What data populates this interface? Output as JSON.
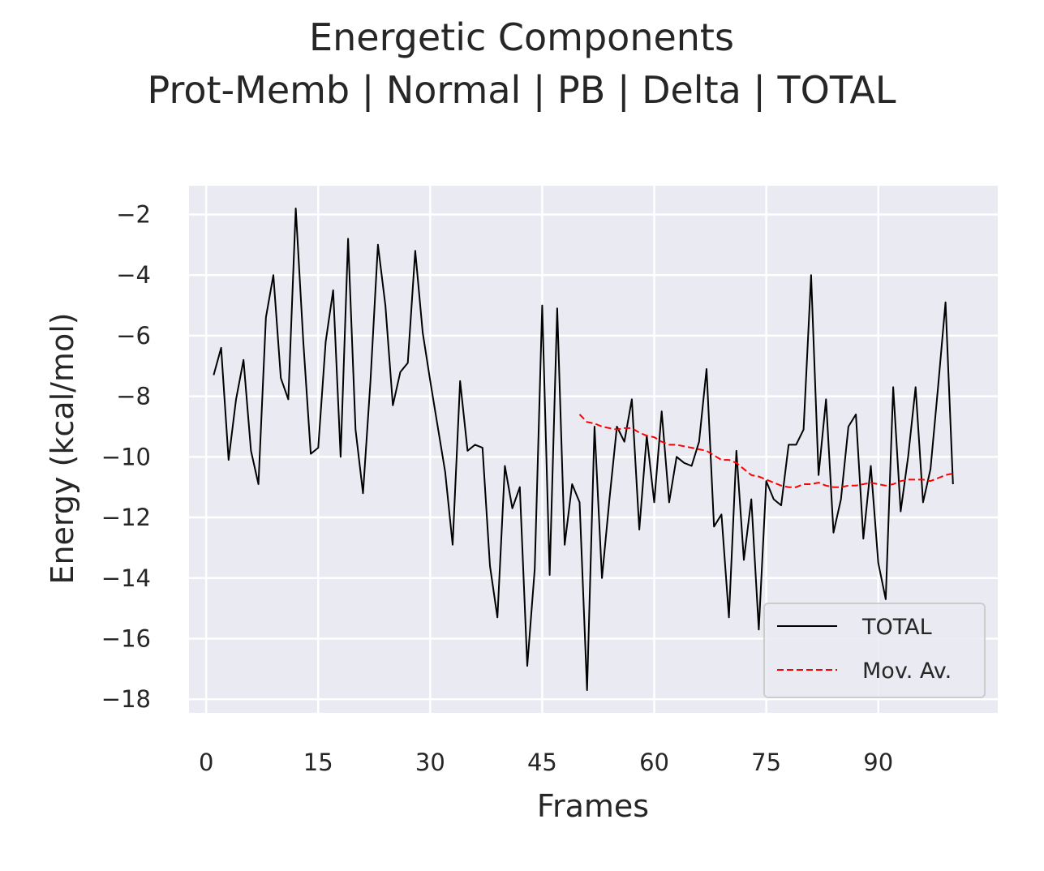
{
  "chart_data": {
    "type": "line",
    "title": "Energetic Components",
    "subtitle": "Prot-Memb | Normal | PB | Delta | TOTAL",
    "xlabel": "Frames",
    "ylabel": "Energy (kcal/mol)",
    "xlim": [
      -2.3,
      106
    ],
    "ylim": [
      -18.45,
      -1.05
    ],
    "xticks": [
      0,
      15,
      30,
      45,
      60,
      75,
      90
    ],
    "xtick_labels": [
      "0",
      "15",
      "30",
      "45",
      "60",
      "75",
      "90"
    ],
    "yticks": [
      -2,
      -4,
      -6,
      -8,
      -10,
      -12,
      -14,
      -16,
      -18
    ],
    "ytick_labels": [
      "−2",
      "−4",
      "−6",
      "−8",
      "−10",
      "−12",
      "−14",
      "−16",
      "−18"
    ],
    "grid": true,
    "legend_position": "lower-right",
    "colors": {
      "total": "#000000",
      "moving_average": "#ff0000",
      "plot_background": "#eaeaf2",
      "grid": "#ffffff"
    },
    "series": [
      {
        "name": "TOTAL",
        "style": "solid",
        "x_start": 1,
        "values": [
          -7.3,
          -6.4,
          -10.1,
          -8.1,
          -6.8,
          -9.8,
          -10.9,
          -5.4,
          -4.0,
          -7.4,
          -8.1,
          -1.8,
          -6.2,
          -9.9,
          -9.7,
          -6.2,
          -4.5,
          -10.0,
          -2.8,
          -9.1,
          -11.2,
          -7.5,
          -3.0,
          -5.0,
          -8.3,
          -7.2,
          -6.9,
          -3.2,
          -5.9,
          -7.5,
          -9.0,
          -10.5,
          -12.9,
          -7.5,
          -9.8,
          -9.6,
          -9.7,
          -13.6,
          -15.3,
          -10.3,
          -11.7,
          -11.0,
          -16.9,
          -13.7,
          -5.0,
          -13.9,
          -5.1,
          -12.9,
          -10.9,
          -11.5,
          -17.7,
          -9.0,
          -14.0,
          -11.4,
          -9.0,
          -9.5,
          -8.1,
          -12.4,
          -9.3,
          -11.5,
          -8.5,
          -11.5,
          -10.0,
          -10.2,
          -10.3,
          -9.5,
          -7.1,
          -12.3,
          -11.9,
          -15.3,
          -9.8,
          -13.4,
          -11.4,
          -15.7,
          -10.8,
          -11.4,
          -11.6,
          -9.6,
          -9.6,
          -9.1,
          -4.0,
          -10.6,
          -8.1,
          -12.5,
          -11.4,
          -9.0,
          -8.6,
          -12.7,
          -10.3,
          -13.5,
          -14.7,
          -7.7,
          -11.8,
          -10.0,
          -7.7,
          -11.5,
          -10.4,
          -7.7,
          -4.9,
          -10.9
        ]
      },
      {
        "name": "Mov. Av.",
        "style": "dashed",
        "x_start": 50,
        "values": [
          -8.6,
          -8.85,
          -8.9,
          -9.0,
          -9.05,
          -9.1,
          -9.05,
          -9.05,
          -9.2,
          -9.3,
          -9.35,
          -9.5,
          -9.6,
          -9.6,
          -9.65,
          -9.7,
          -9.75,
          -9.8,
          -9.95,
          -10.1,
          -10.1,
          -10.2,
          -10.4,
          -10.6,
          -10.65,
          -10.75,
          -10.85,
          -10.95,
          -11.0,
          -11.0,
          -10.9,
          -10.9,
          -10.85,
          -10.95,
          -11.0,
          -11.0,
          -10.95,
          -10.95,
          -10.9,
          -10.85,
          -10.9,
          -10.95,
          -10.9,
          -10.8,
          -10.75,
          -10.75,
          -10.75,
          -10.8,
          -10.7,
          -10.6,
          -10.55
        ]
      }
    ]
  }
}
